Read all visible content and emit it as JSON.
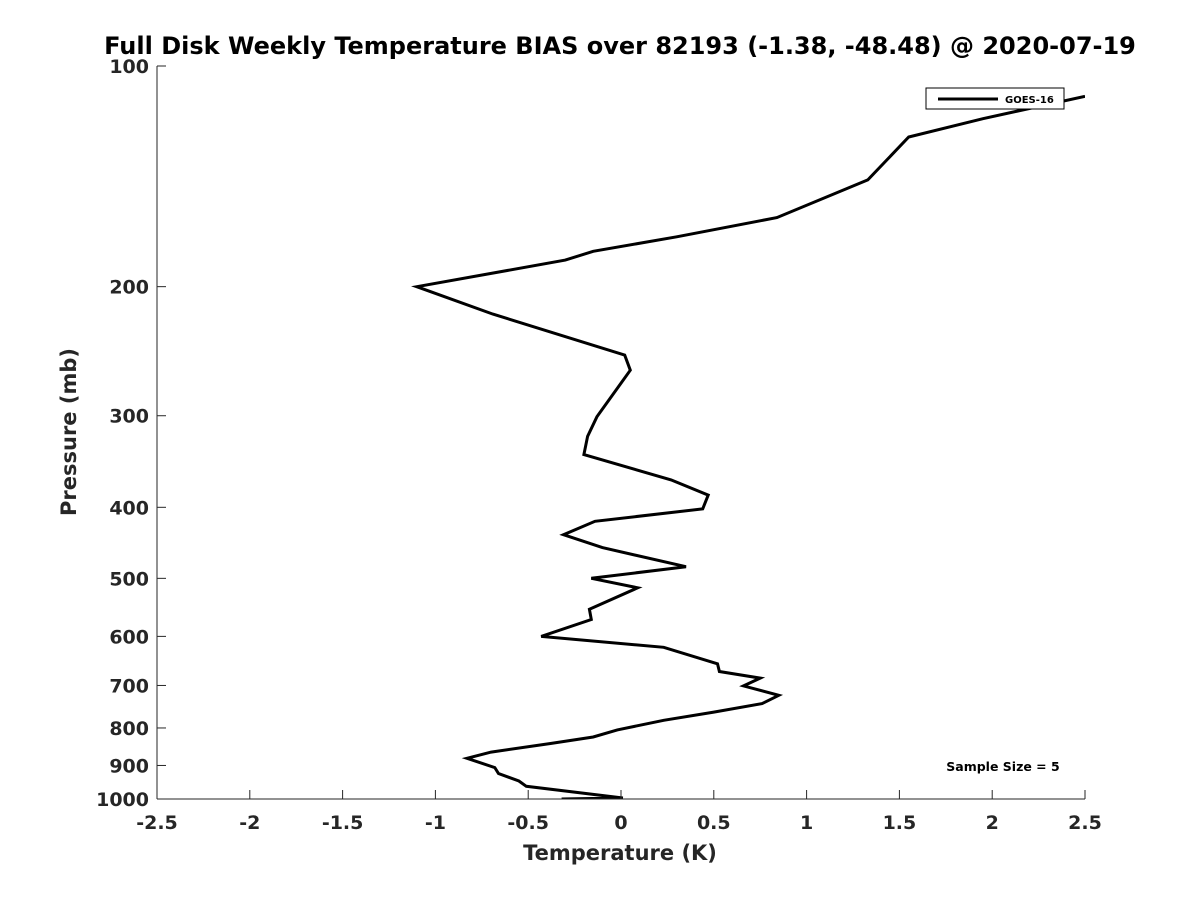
{
  "chart_data": {
    "type": "line",
    "title": "Full Disk Weekly Temperature BIAS over 82193 (-1.38, -48.48) @ 2020-07-19",
    "xlabel": "Temperature (K)",
    "ylabel": "Pressure (mb)",
    "xlim": [
      -2.5,
      2.5
    ],
    "ylim": [
      100,
      1000
    ],
    "y_scale": "log",
    "y_reversed": true,
    "x_ticks": [
      -2.5,
      -2,
      -1.5,
      -1,
      -0.5,
      0,
      0.5,
      1,
      1.5,
      2,
      2.5
    ],
    "x_tick_labels": [
      "-2.5",
      "-2",
      "-1.5",
      "-1",
      "-0.5",
      "0",
      "0.5",
      "1",
      "1.5",
      "2",
      "2.5"
    ],
    "y_ticks": [
      100,
      200,
      300,
      400,
      500,
      600,
      700,
      800,
      900,
      1000
    ],
    "y_tick_labels": [
      "100",
      "200",
      "300",
      "400",
      "500",
      "600",
      "700",
      "800",
      "900",
      "1000"
    ],
    "grid": false,
    "legend_position": "top-right",
    "annotation": "Sample Size = 5",
    "series": [
      {
        "name": "GOES-16",
        "color": "#000000",
        "points": [
          {
            "x": 2.5,
            "p": 110
          },
          {
            "x": 1.95,
            "p": 118
          },
          {
            "x": 1.55,
            "p": 125
          },
          {
            "x": 1.33,
            "p": 143
          },
          {
            "x": 0.84,
            "p": 161
          },
          {
            "x": 0.3,
            "p": 171
          },
          {
            "x": -0.15,
            "p": 179
          },
          {
            "x": -0.3,
            "p": 184
          },
          {
            "x": -1.1,
            "p": 200
          },
          {
            "x": -0.69,
            "p": 218
          },
          {
            "x": 0.02,
            "p": 248
          },
          {
            "x": 0.05,
            "p": 260
          },
          {
            "x": -0.13,
            "p": 301
          },
          {
            "x": -0.18,
            "p": 320
          },
          {
            "x": -0.2,
            "p": 339
          },
          {
            "x": 0.27,
            "p": 367
          },
          {
            "x": 0.47,
            "p": 385
          },
          {
            "x": 0.44,
            "p": 402
          },
          {
            "x": -0.14,
            "p": 418
          },
          {
            "x": -0.31,
            "p": 436
          },
          {
            "x": -0.1,
            "p": 454
          },
          {
            "x": 0.35,
            "p": 482
          },
          {
            "x": -0.16,
            "p": 500
          },
          {
            "x": 0.09,
            "p": 515
          },
          {
            "x": -0.17,
            "p": 551
          },
          {
            "x": -0.16,
            "p": 569
          },
          {
            "x": -0.43,
            "p": 600
          },
          {
            "x": 0.23,
            "p": 621
          },
          {
            "x": 0.52,
            "p": 654
          },
          {
            "x": 0.53,
            "p": 670
          },
          {
            "x": 0.75,
            "p": 684
          },
          {
            "x": 0.66,
            "p": 701
          },
          {
            "x": 0.85,
            "p": 722
          },
          {
            "x": 0.76,
            "p": 741
          },
          {
            "x": 0.5,
            "p": 761
          },
          {
            "x": 0.23,
            "p": 781
          },
          {
            "x": -0.02,
            "p": 805
          },
          {
            "x": -0.15,
            "p": 823
          },
          {
            "x": -0.38,
            "p": 840
          },
          {
            "x": -0.7,
            "p": 863
          },
          {
            "x": -0.83,
            "p": 880
          },
          {
            "x": -0.68,
            "p": 906
          },
          {
            "x": -0.66,
            "p": 923
          },
          {
            "x": -0.55,
            "p": 945
          },
          {
            "x": -0.51,
            "p": 961
          },
          {
            "x": 0.01,
            "p": 997
          },
          {
            "x": -0.32,
            "p": 1000
          }
        ]
      }
    ]
  }
}
